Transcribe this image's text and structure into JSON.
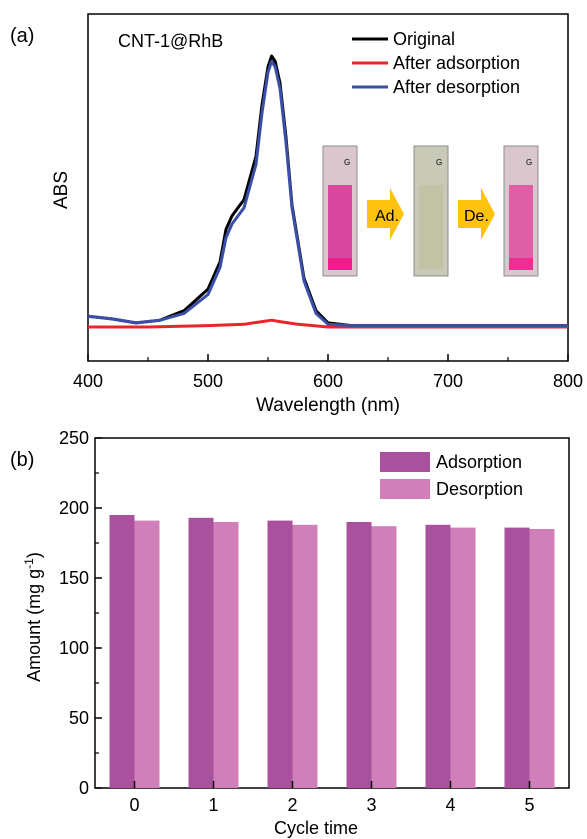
{
  "chart_data": [
    {
      "type": "line",
      "panel_label": "(a)",
      "inset_label": "CNT-1@RhB",
      "xlabel": "Wavelength (nm)",
      "ylabel": "ABS",
      "xlim": [
        400,
        800
      ],
      "ylim": [
        0,
        1.0
      ],
      "xticks": [
        400,
        500,
        600,
        700,
        800
      ],
      "legend_position": "top-right",
      "series": [
        {
          "name": "Original",
          "color": "#000000",
          "x": [
            400,
            420,
            440,
            460,
            480,
            500,
            510,
            515,
            520,
            530,
            540,
            545,
            550,
            553,
            556,
            560,
            565,
            570,
            580,
            590,
            600,
            620,
            650,
            700,
            800
          ],
          "y": [
            0.04,
            0.03,
            0.015,
            0.025,
            0.06,
            0.14,
            0.24,
            0.36,
            0.41,
            0.47,
            0.63,
            0.82,
            0.96,
            1.0,
            0.98,
            0.9,
            0.7,
            0.45,
            0.18,
            0.06,
            0.015,
            0.005,
            0.005,
            0.005,
            0.005
          ]
        },
        {
          "name": "After adsorption",
          "color": "#e8262a",
          "x": [
            400,
            450,
            500,
            530,
            545,
            553,
            560,
            575,
            600,
            700,
            800
          ],
          "y": [
            0.0,
            0.0,
            0.005,
            0.01,
            0.02,
            0.025,
            0.02,
            0.01,
            0.0,
            0.0,
            0.0
          ]
        },
        {
          "name": "After desorption",
          "color": "#3a4fa8",
          "x": [
            400,
            420,
            440,
            460,
            480,
            500,
            510,
            515,
            520,
            530,
            540,
            545,
            550,
            553,
            556,
            560,
            565,
            570,
            580,
            590,
            600,
            620,
            650,
            700,
            800
          ],
          "y": [
            0.04,
            0.03,
            0.015,
            0.025,
            0.05,
            0.12,
            0.22,
            0.33,
            0.38,
            0.44,
            0.6,
            0.79,
            0.94,
            0.98,
            0.96,
            0.88,
            0.68,
            0.44,
            0.17,
            0.05,
            0.01,
            0.005,
            0.005,
            0.005,
            0.005
          ]
        }
      ],
      "inset_steps": [
        "Ad.",
        "De."
      ],
      "inset_vial_mark": "G"
    },
    {
      "type": "bar",
      "panel_label": "(b)",
      "xlabel": "Cycle time",
      "ylabel": "Amount (mg g",
      "ylabel_sup": "-1",
      "ylabel_close": ")",
      "ylim": [
        0,
        250
      ],
      "yticks": [
        0,
        50,
        100,
        150,
        200,
        250
      ],
      "categories": [
        "0",
        "1",
        "2",
        "3",
        "4",
        "5"
      ],
      "legend_position": "top-right",
      "series": [
        {
          "name": "Adsorption",
          "color": "#a9519c",
          "values": [
            195,
            193,
            191,
            190,
            188,
            186
          ]
        },
        {
          "name": "Desorption",
          "color": "#d07fb8",
          "values": [
            191,
            190,
            188,
            187,
            186,
            185
          ]
        }
      ]
    }
  ]
}
